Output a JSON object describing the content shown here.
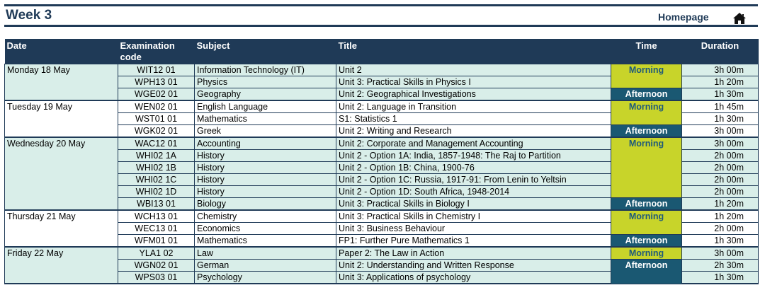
{
  "header": {
    "week_title": "Week 3",
    "homepage_label": "Homepage"
  },
  "columns": [
    "Date",
    "Examination code",
    "Subject",
    "Title",
    "Time",
    "Duration"
  ],
  "columns_display": {
    "date": "Date",
    "exam_code_line1": "Examination",
    "exam_code_line2": "code",
    "subject": "Subject",
    "title": "Title",
    "time": "Time",
    "duration": "Duration"
  },
  "days": [
    {
      "date": "Monday 18 May",
      "rows": [
        {
          "code": "WIT12 01",
          "subject": "Information Technology (IT)",
          "title": "Unit 2",
          "duration": "3h 00m"
        },
        {
          "code": "WPH13 01",
          "subject": "Physics",
          "title": "Unit 3: Practical Skills in Physics I",
          "duration": "1h 20m"
        },
        {
          "code": "WGE02 01",
          "subject": "Geography",
          "title": "Unit 2: Geographical Investigations",
          "duration": "1h 30m"
        }
      ],
      "sessions": [
        "Morning",
        "Afternoon"
      ]
    },
    {
      "date": "Tuesday 19 May",
      "rows": [
        {
          "code": "WEN02 01",
          "subject": "English Language",
          "title": "Unit 2: Language in Transition",
          "duration": "1h 45m"
        },
        {
          "code": "WST01 01",
          "subject": "Mathematics",
          "title": "S1: Statistics 1",
          "duration": "1h 30m"
        },
        {
          "code": "WGK02 01",
          "subject": "Greek",
          "title": "Unit 2: Writing and Research",
          "duration": "3h 00m"
        }
      ],
      "sessions": [
        "Morning",
        "Afternoon"
      ]
    },
    {
      "date": "Wednesday 20 May",
      "rows": [
        {
          "code": "WAC12 01",
          "subject": "Accounting",
          "title": "Unit 2: Corporate and Management Accounting",
          "duration": "3h 00m"
        },
        {
          "code": "WHI02 1A",
          "subject": "History",
          "title": "Unit 2 - Option 1A: India, 1857-1948: The Raj to Partition",
          "duration": "2h 00m"
        },
        {
          "code": "WHI02 1B",
          "subject": "History",
          "title": "Unit 2 - Option 1B: China, 1900-76",
          "duration": "2h 00m"
        },
        {
          "code": "WHI02 1C",
          "subject": "History",
          "title": "Unit 2 - Option 1C: Russia, 1917-91: From Lenin to Yeltsin",
          "duration": "2h 00m"
        },
        {
          "code": "WHI02 1D",
          "subject": "History",
          "title": "Unit 2 - Option 1D: South Africa, 1948-2014",
          "duration": "2h 00m"
        },
        {
          "code": "WBI13 01",
          "subject": "Biology",
          "title": "Unit 3: Practical Skills in Biology I",
          "duration": "1h 20m"
        }
      ],
      "sessions": [
        "Morning",
        "Afternoon"
      ]
    },
    {
      "date": "Thursday 21 May",
      "rows": [
        {
          "code": "WCH13 01",
          "subject": "Chemistry",
          "title": "Unit 3: Practical Skills in Chemistry I",
          "duration": "1h 20m"
        },
        {
          "code": "WEC13 01",
          "subject": "Economics",
          "title": "Unit 3: Business Behaviour",
          "duration": "2h 00m"
        },
        {
          "code": "WFM01 01",
          "subject": "Mathematics",
          "title": "FP1: Further Pure Mathematics 1",
          "duration": "1h 30m"
        }
      ],
      "sessions": [
        "Morning",
        "Afternoon"
      ]
    },
    {
      "date": "Friday 22 May",
      "rows": [
        {
          "code": "YLA1 02",
          "subject": "Law",
          "title": "Paper 2: The Law in Action",
          "duration": "3h 00m"
        },
        {
          "code": "WGN02 01",
          "subject": "German",
          "title": "Unit 2: Understanding and Written Response",
          "duration": "2h 30m"
        },
        {
          "code": "WPS03 01",
          "subject": "Psychology",
          "title": "Unit 3: Applications of psychology",
          "duration": "1h 30m"
        }
      ],
      "sessions": [
        "Morning",
        "Afternoon"
      ]
    }
  ],
  "colors": {
    "header_bg": "#1f3a57",
    "morning_bg": "#c8d42a",
    "afternoon_bg": "#1a5872",
    "shaded_row_bg": "#d9eee9"
  },
  "icons": {
    "home": "home-icon"
  }
}
